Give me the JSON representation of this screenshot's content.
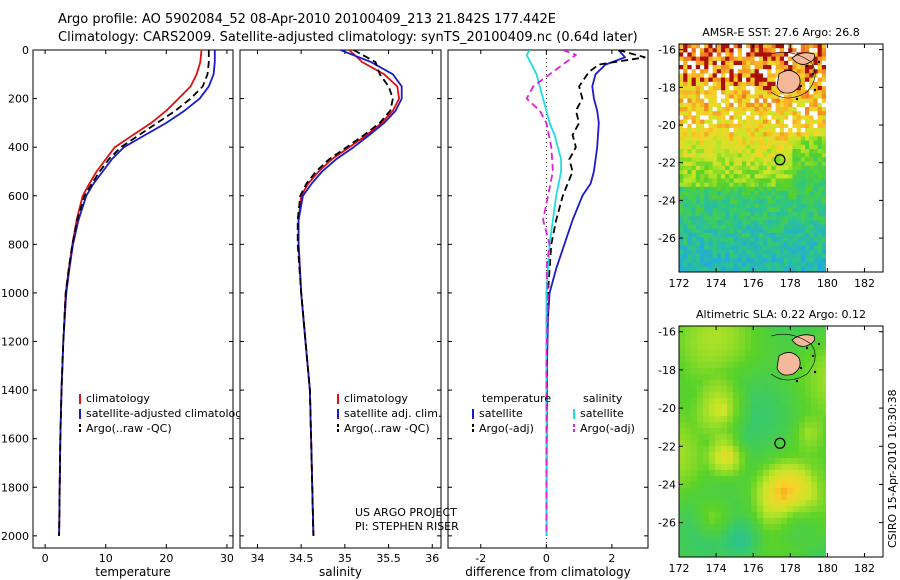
{
  "header": {
    "line1": "Argo profile: AO 5902084_52 08-Apr-2010 20100409_213 21.842S 177.442E",
    "line2": "Climatology: CARS2009. Satellite-adjusted climatology: synTS_20100409.nc (0.64d later)"
  },
  "credit": {
    "line1": "US ARGO PROJECT",
    "line2": "PI: STEPHEN RISER",
    "stamp": "CSIRO 15-Apr-2010 10:30:38"
  },
  "colors": {
    "climatology": "#dd1111",
    "satellite": "#1a1acc",
    "argo": "#000000",
    "sal_satellite": "#22dddd",
    "sal_argo": "#dd22dd",
    "land": "#f5b89a"
  },
  "chart_data": [
    {
      "type": "line",
      "id": "temperature",
      "xlabel": "temperature",
      "ylabel": "",
      "xlim": [
        -2,
        31
      ],
      "ylim": [
        2050,
        0
      ],
      "xticks": [
        0,
        10,
        20,
        30
      ],
      "yticks": [
        0,
        200,
        400,
        600,
        800,
        1000,
        1200,
        1400,
        1600,
        1800,
        2000
      ],
      "legend": [
        "climatology",
        "satellite-adjusted climatology",
        "Argo(..raw -QC)"
      ],
      "series": [
        {
          "name": "climatology",
          "style": "solid",
          "color": "#dd1111",
          "x": [
            25.8,
            25.6,
            25.0,
            24.0,
            22.0,
            20.0,
            17.5,
            14.5,
            11.5,
            10.0,
            8.5,
            7.3,
            6.2,
            5.2,
            4.5,
            3.9,
            3.4,
            3.0,
            2.7,
            2.5,
            2.4,
            2.3
          ],
          "y": [
            0,
            50,
            100,
            150,
            200,
            250,
            300,
            350,
            400,
            450,
            500,
            550,
            600,
            700,
            800,
            900,
            1000,
            1200,
            1400,
            1600,
            1800,
            2000
          ]
        },
        {
          "name": "satellite-adjusted climatology",
          "style": "solid",
          "color": "#1a1acc",
          "x": [
            28.0,
            28.0,
            27.8,
            27.0,
            25.5,
            23.0,
            20.0,
            16.5,
            13.0,
            11.0,
            9.5,
            8.0,
            6.8,
            5.5,
            4.6,
            4.0,
            3.5,
            3.0,
            2.7,
            2.5,
            2.4,
            2.3
          ],
          "y": [
            0,
            50,
            100,
            150,
            200,
            250,
            300,
            350,
            400,
            450,
            500,
            550,
            600,
            700,
            800,
            900,
            1000,
            1200,
            1400,
            1600,
            1800,
            2000
          ]
        },
        {
          "name": "Argo(..raw -QC)",
          "style": "dashed",
          "color": "#000000",
          "x": [
            27.0,
            27.0,
            26.8,
            26.0,
            24.0,
            21.5,
            18.5,
            15.5,
            12.5,
            10.5,
            9.0,
            7.7,
            6.5,
            5.3,
            4.5,
            3.9,
            3.4,
            3.0,
            2.7,
            2.5,
            2.4,
            2.3
          ],
          "y": [
            0,
            50,
            100,
            150,
            200,
            250,
            300,
            350,
            400,
            450,
            500,
            550,
            600,
            700,
            800,
            900,
            1000,
            1200,
            1400,
            1600,
            1800,
            2000
          ]
        }
      ]
    },
    {
      "type": "line",
      "id": "salinity",
      "xlabel": "salinity",
      "ylabel": "",
      "xlim": [
        33.8,
        36.1
      ],
      "ylim": [
        2050,
        0
      ],
      "xticks": [
        34,
        34.5,
        35,
        35.5,
        36
      ],
      "yticks": [],
      "legend": [
        "climatology",
        "satellite adj. clim.",
        "Argo(..raw -QC)"
      ],
      "series": [
        {
          "name": "climatology",
          "style": "solid",
          "color": "#dd1111",
          "x": [
            35.05,
            35.2,
            35.45,
            35.6,
            35.62,
            35.55,
            35.42,
            35.25,
            35.05,
            34.85,
            34.7,
            34.58,
            34.5,
            34.47,
            34.47,
            34.5,
            34.55,
            34.6,
            34.62,
            34.64
          ],
          "y": [
            0,
            50,
            100,
            150,
            200,
            250,
            300,
            350,
            400,
            450,
            500,
            550,
            600,
            700,
            800,
            1000,
            1200,
            1400,
            1700,
            2000
          ]
        },
        {
          "name": "satellite adj. clim.",
          "style": "solid",
          "color": "#1a1acc",
          "x": [
            34.95,
            35.3,
            35.55,
            35.65,
            35.65,
            35.58,
            35.45,
            35.28,
            35.1,
            34.9,
            34.74,
            34.62,
            34.52,
            34.47,
            34.47,
            34.5,
            34.55,
            34.6,
            34.62,
            34.64
          ],
          "y": [
            0,
            50,
            100,
            150,
            200,
            250,
            300,
            350,
            400,
            450,
            500,
            550,
            600,
            700,
            800,
            1000,
            1200,
            1400,
            1700,
            2000
          ]
        },
        {
          "name": "Argo(..raw -QC)",
          "style": "dashed",
          "color": "#000000",
          "x": [
            35.1,
            35.35,
            35.4,
            35.5,
            35.55,
            35.52,
            35.4,
            35.22,
            35.02,
            34.82,
            34.67,
            34.56,
            34.49,
            34.46,
            34.46,
            34.5,
            34.55,
            34.6,
            34.62,
            34.64
          ],
          "y": [
            0,
            50,
            100,
            150,
            200,
            250,
            300,
            350,
            400,
            450,
            500,
            550,
            600,
            700,
            800,
            1000,
            1200,
            1400,
            1700,
            2000
          ]
        }
      ]
    },
    {
      "type": "line",
      "id": "difference",
      "xlabel": "difference from climatology",
      "ylabel": "",
      "xlim": [
        -3,
        3.1
      ],
      "ylim": [
        2050,
        0
      ],
      "xticks": [
        -2,
        0,
        2
      ],
      "yticks": [],
      "legend_temperature_title": "temperature",
      "legend_salinity_title": "salinity",
      "legend_temperature": [
        "satellite",
        "Argo(-adj)"
      ],
      "legend_salinity": [
        "satellite",
        "Argo(-adj)"
      ],
      "series": [
        {
          "name": "temperature satellite",
          "style": "solid",
          "color": "#1a1acc",
          "x": [
            2.2,
            2.4,
            1.8,
            1.5,
            1.4,
            1.45,
            1.55,
            1.6,
            1.55,
            1.45,
            1.35,
            1.1,
            0.8,
            0.55,
            0.3,
            0.1,
            0.05,
            0.02,
            0.01,
            0.0
          ],
          "y": [
            0,
            30,
            60,
            100,
            150,
            200,
            250,
            300,
            400,
            500,
            550,
            600,
            700,
            800,
            900,
            1000,
            1100,
            1300,
            1600,
            2000
          ]
        },
        {
          "name": "temperature Argo(-adj)",
          "style": "dashed",
          "color": "#000000",
          "x": [
            2.2,
            3.0,
            1.6,
            1.3,
            1.0,
            1.1,
            0.9,
            1.0,
            0.8,
            0.9,
            0.7,
            0.8,
            0.5,
            0.3,
            0.15,
            0.1,
            0.05,
            0.02,
            0.0
          ],
          "y": [
            0,
            30,
            60,
            90,
            150,
            200,
            250,
            300,
            350,
            400,
            450,
            500,
            600,
            700,
            800,
            900,
            1000,
            1200,
            2000
          ]
        },
        {
          "name": "salinity satellite",
          "style": "solid",
          "color": "#22dddd",
          "x": [
            -0.5,
            -0.6,
            -0.45,
            -0.3,
            -0.2,
            -0.1,
            0.0,
            0.1,
            0.25,
            0.35,
            0.45,
            0.45,
            0.3,
            0.1,
            0.0,
            0.0,
            0.0
          ],
          "y": [
            0,
            20,
            60,
            100,
            150,
            200,
            250,
            300,
            350,
            400,
            450,
            500,
            600,
            800,
            1000,
            1400,
            2000
          ]
        },
        {
          "name": "salinity Argo(-adj)",
          "style": "dashed",
          "color": "#dd22dd",
          "x": [
            0.5,
            0.9,
            0.5,
            0.1,
            -0.4,
            -0.6,
            -0.2,
            0.0,
            0.15,
            0.2,
            0.05,
            -0.1,
            0.1,
            0.0,
            0.05,
            0.0,
            0.0
          ],
          "y": [
            0,
            20,
            60,
            100,
            150,
            200,
            250,
            300,
            400,
            500,
            600,
            700,
            800,
            900,
            1000,
            1300,
            2000
          ]
        }
      ]
    },
    {
      "type": "heatmap",
      "id": "sst-map",
      "title": "AMSR-E SST: 27.6  Argo: 26.8",
      "xlim": [
        172,
        183
      ],
      "ylim": [
        -27.8,
        -15.7
      ],
      "xticks": [
        172,
        174,
        176,
        178,
        180,
        182
      ],
      "yticks": [
        -16,
        -18,
        -20,
        -22,
        -24,
        -26
      ],
      "marker": {
        "lon": 177.442,
        "lat": -21.842
      }
    },
    {
      "type": "heatmap",
      "id": "sla-map",
      "title": "Altimetric SLA: 0.22  Argo: 0.12",
      "xlim": [
        172,
        183
      ],
      "ylim": [
        -27.8,
        -15.7
      ],
      "xticks": [
        172,
        174,
        176,
        178,
        180,
        182
      ],
      "yticks": [
        -16,
        -18,
        -20,
        -22,
        -24,
        -26
      ],
      "marker": {
        "lon": 177.442,
        "lat": -21.842
      }
    }
  ]
}
